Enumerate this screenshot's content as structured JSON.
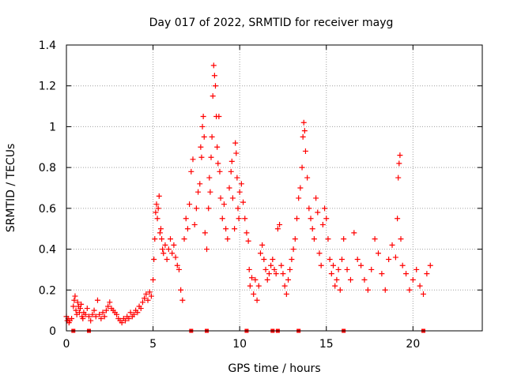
{
  "chart_data": {
    "type": "scatter",
    "title": "Day 017 of 2022, SRMTID for receiver mayg",
    "xlabel": "GPS time / hours",
    "ylabel": "SRMTID / TECUs",
    "xlim": [
      0,
      24
    ],
    "ylim": [
      0,
      1.4
    ],
    "xticks": [
      0,
      5,
      10,
      15,
      20
    ],
    "xtick_labels": [
      "0",
      "5",
      "10",
      "15",
      "20"
    ],
    "yticks": [
      0,
      0.2,
      0.4,
      0.6,
      0.8,
      1,
      1.2,
      1.4
    ],
    "ytick_labels": [
      "0",
      "0.2",
      "0.4",
      "0.6",
      "0.8",
      "1",
      "1.2",
      "1.4"
    ],
    "grid": true,
    "marker": "plus",
    "color": "#ff0000",
    "series": [
      {
        "name": "SRMTID",
        "points": [
          [
            0.0,
            0.07
          ],
          [
            0.05,
            0.05
          ],
          [
            0.1,
            0.06
          ],
          [
            0.15,
            0.04
          ],
          [
            0.2,
            0.05
          ],
          [
            0.3,
            0.06
          ],
          [
            0.4,
            0.12
          ],
          [
            0.45,
            0.15
          ],
          [
            0.5,
            0.17
          ],
          [
            0.55,
            0.1
          ],
          [
            0.6,
            0.08
          ],
          [
            0.65,
            0.14
          ],
          [
            0.7,
            0.12
          ],
          [
            0.75,
            0.09
          ],
          [
            0.8,
            0.11
          ],
          [
            0.85,
            0.13
          ],
          [
            0.9,
            0.07
          ],
          [
            0.95,
            0.06
          ],
          [
            1.0,
            0.09
          ],
          [
            1.1,
            0.08
          ],
          [
            1.2,
            0.11
          ],
          [
            1.3,
            0.07
          ],
          [
            1.4,
            0.05
          ],
          [
            1.5,
            0.08
          ],
          [
            1.6,
            0.1
          ],
          [
            1.7,
            0.07
          ],
          [
            1.8,
            0.15
          ],
          [
            1.9,
            0.08
          ],
          [
            2.0,
            0.06
          ],
          [
            2.1,
            0.09
          ],
          [
            2.2,
            0.07
          ],
          [
            2.3,
            0.1
          ],
          [
            2.4,
            0.12
          ],
          [
            2.5,
            0.14
          ],
          [
            2.6,
            0.11
          ],
          [
            2.7,
            0.1
          ],
          [
            2.8,
            0.09
          ],
          [
            2.9,
            0.08
          ],
          [
            3.0,
            0.06
          ],
          [
            3.1,
            0.05
          ],
          [
            3.2,
            0.04
          ],
          [
            3.3,
            0.06
          ],
          [
            3.4,
            0.05
          ],
          [
            3.5,
            0.07
          ],
          [
            3.6,
            0.06
          ],
          [
            3.7,
            0.09
          ],
          [
            3.8,
            0.07
          ],
          [
            3.9,
            0.08
          ],
          [
            4.0,
            0.1
          ],
          [
            4.1,
            0.09
          ],
          [
            4.2,
            0.12
          ],
          [
            4.3,
            0.11
          ],
          [
            4.4,
            0.14
          ],
          [
            4.5,
            0.16
          ],
          [
            4.6,
            0.18
          ],
          [
            4.7,
            0.15
          ],
          [
            4.8,
            0.19
          ],
          [
            4.9,
            0.17
          ],
          [
            5.0,
            0.25
          ],
          [
            5.05,
            0.35
          ],
          [
            5.1,
            0.45
          ],
          [
            5.15,
            0.58
          ],
          [
            5.2,
            0.62
          ],
          [
            5.25,
            0.55
          ],
          [
            5.3,
            0.6
          ],
          [
            5.35,
            0.66
          ],
          [
            5.4,
            0.48
          ],
          [
            5.45,
            0.5
          ],
          [
            5.5,
            0.45
          ],
          [
            5.55,
            0.4
          ],
          [
            5.6,
            0.38
          ],
          [
            5.7,
            0.42
          ],
          [
            5.8,
            0.35
          ],
          [
            5.9,
            0.4
          ],
          [
            6.0,
            0.45
          ],
          [
            6.1,
            0.38
          ],
          [
            6.2,
            0.42
          ],
          [
            6.3,
            0.36
          ],
          [
            6.4,
            0.32
          ],
          [
            6.5,
            0.3
          ],
          [
            6.6,
            0.2
          ],
          [
            6.7,
            0.15
          ],
          [
            6.8,
            0.45
          ],
          [
            6.9,
            0.55
          ],
          [
            7.0,
            0.5
          ],
          [
            7.1,
            0.62
          ],
          [
            7.2,
            0.78
          ],
          [
            7.3,
            0.84
          ],
          [
            7.4,
            0.52
          ],
          [
            7.5,
            0.6
          ],
          [
            7.6,
            0.68
          ],
          [
            7.7,
            0.72
          ],
          [
            7.75,
            0.9
          ],
          [
            7.8,
            0.85
          ],
          [
            7.85,
            1.0
          ],
          [
            7.9,
            1.05
          ],
          [
            7.95,
            0.95
          ],
          [
            8.0,
            0.48
          ],
          [
            8.1,
            0.4
          ],
          [
            8.2,
            0.6
          ],
          [
            8.25,
            0.75
          ],
          [
            8.3,
            0.68
          ],
          [
            8.35,
            0.85
          ],
          [
            8.4,
            0.95
          ],
          [
            8.45,
            1.15
          ],
          [
            8.5,
            1.3
          ],
          [
            8.55,
            1.25
          ],
          [
            8.6,
            1.2
          ],
          [
            8.65,
            1.05
          ],
          [
            8.7,
            0.9
          ],
          [
            8.75,
            0.82
          ],
          [
            8.8,
            1.05
          ],
          [
            8.85,
            0.78
          ],
          [
            8.9,
            0.65
          ],
          [
            9.0,
            0.55
          ],
          [
            9.1,
            0.62
          ],
          [
            9.2,
            0.5
          ],
          [
            9.3,
            0.45
          ],
          [
            9.4,
            0.7
          ],
          [
            9.5,
            0.78
          ],
          [
            9.55,
            0.83
          ],
          [
            9.6,
            0.65
          ],
          [
            9.7,
            0.5
          ],
          [
            9.75,
            0.92
          ],
          [
            9.8,
            0.87
          ],
          [
            9.85,
            0.75
          ],
          [
            9.9,
            0.6
          ],
          [
            9.95,
            0.55
          ],
          [
            10.0,
            0.68
          ],
          [
            10.1,
            0.72
          ],
          [
            10.2,
            0.63
          ],
          [
            10.3,
            0.55
          ],
          [
            10.4,
            0.48
          ],
          [
            10.5,
            0.44
          ],
          [
            10.55,
            0.3
          ],
          [
            10.6,
            0.22
          ],
          [
            10.7,
            0.26
          ],
          [
            10.8,
            0.18
          ],
          [
            10.9,
            0.25
          ],
          [
            11.0,
            0.15
          ],
          [
            11.1,
            0.22
          ],
          [
            11.2,
            0.38
          ],
          [
            11.3,
            0.42
          ],
          [
            11.4,
            0.35
          ],
          [
            11.5,
            0.3
          ],
          [
            11.6,
            0.25
          ],
          [
            11.7,
            0.28
          ],
          [
            11.8,
            0.32
          ],
          [
            11.9,
            0.35
          ],
          [
            12.0,
            0.3
          ],
          [
            12.1,
            0.28
          ],
          [
            12.2,
            0.5
          ],
          [
            12.3,
            0.52
          ],
          [
            12.4,
            0.32
          ],
          [
            12.5,
            0.28
          ],
          [
            12.6,
            0.22
          ],
          [
            12.7,
            0.18
          ],
          [
            12.8,
            0.25
          ],
          [
            12.9,
            0.3
          ],
          [
            13.0,
            0.35
          ],
          [
            13.1,
            0.4
          ],
          [
            13.2,
            0.45
          ],
          [
            13.3,
            0.55
          ],
          [
            13.4,
            0.65
          ],
          [
            13.5,
            0.7
          ],
          [
            13.6,
            0.8
          ],
          [
            13.65,
            0.95
          ],
          [
            13.7,
            1.02
          ],
          [
            13.75,
            0.98
          ],
          [
            13.8,
            0.88
          ],
          [
            13.9,
            0.75
          ],
          [
            14.0,
            0.6
          ],
          [
            14.1,
            0.55
          ],
          [
            14.2,
            0.5
          ],
          [
            14.3,
            0.45
          ],
          [
            14.4,
            0.65
          ],
          [
            14.5,
            0.58
          ],
          [
            14.6,
            0.38
          ],
          [
            14.7,
            0.32
          ],
          [
            14.8,
            0.52
          ],
          [
            14.9,
            0.6
          ],
          [
            15.0,
            0.55
          ],
          [
            15.1,
            0.45
          ],
          [
            15.2,
            0.35
          ],
          [
            15.3,
            0.28
          ],
          [
            15.4,
            0.32
          ],
          [
            15.5,
            0.22
          ],
          [
            15.6,
            0.25
          ],
          [
            15.7,
            0.3
          ],
          [
            15.8,
            0.2
          ],
          [
            15.9,
            0.35
          ],
          [
            16.0,
            0.45
          ],
          [
            16.2,
            0.3
          ],
          [
            16.4,
            0.25
          ],
          [
            16.6,
            0.48
          ],
          [
            16.8,
            0.35
          ],
          [
            17.0,
            0.32
          ],
          [
            17.2,
            0.25
          ],
          [
            17.4,
            0.2
          ],
          [
            17.6,
            0.3
          ],
          [
            17.8,
            0.45
          ],
          [
            18.0,
            0.38
          ],
          [
            18.2,
            0.28
          ],
          [
            18.4,
            0.2
          ],
          [
            18.6,
            0.35
          ],
          [
            18.8,
            0.42
          ],
          [
            19.0,
            0.36
          ],
          [
            19.1,
            0.55
          ],
          [
            19.15,
            0.75
          ],
          [
            19.2,
            0.82
          ],
          [
            19.25,
            0.86
          ],
          [
            19.3,
            0.45
          ],
          [
            19.4,
            0.32
          ],
          [
            19.6,
            0.28
          ],
          [
            19.8,
            0.2
          ],
          [
            20.0,
            0.25
          ],
          [
            20.2,
            0.3
          ],
          [
            20.4,
            0.22
          ],
          [
            20.6,
            0.18
          ],
          [
            20.8,
            0.28
          ],
          [
            21.0,
            0.32
          ]
        ]
      }
    ],
    "baseline_markers_x": [
      0.4,
      1.3,
      7.2,
      8.1,
      10.4,
      11.9,
      12.2,
      13.4,
      16.0,
      20.6
    ]
  }
}
